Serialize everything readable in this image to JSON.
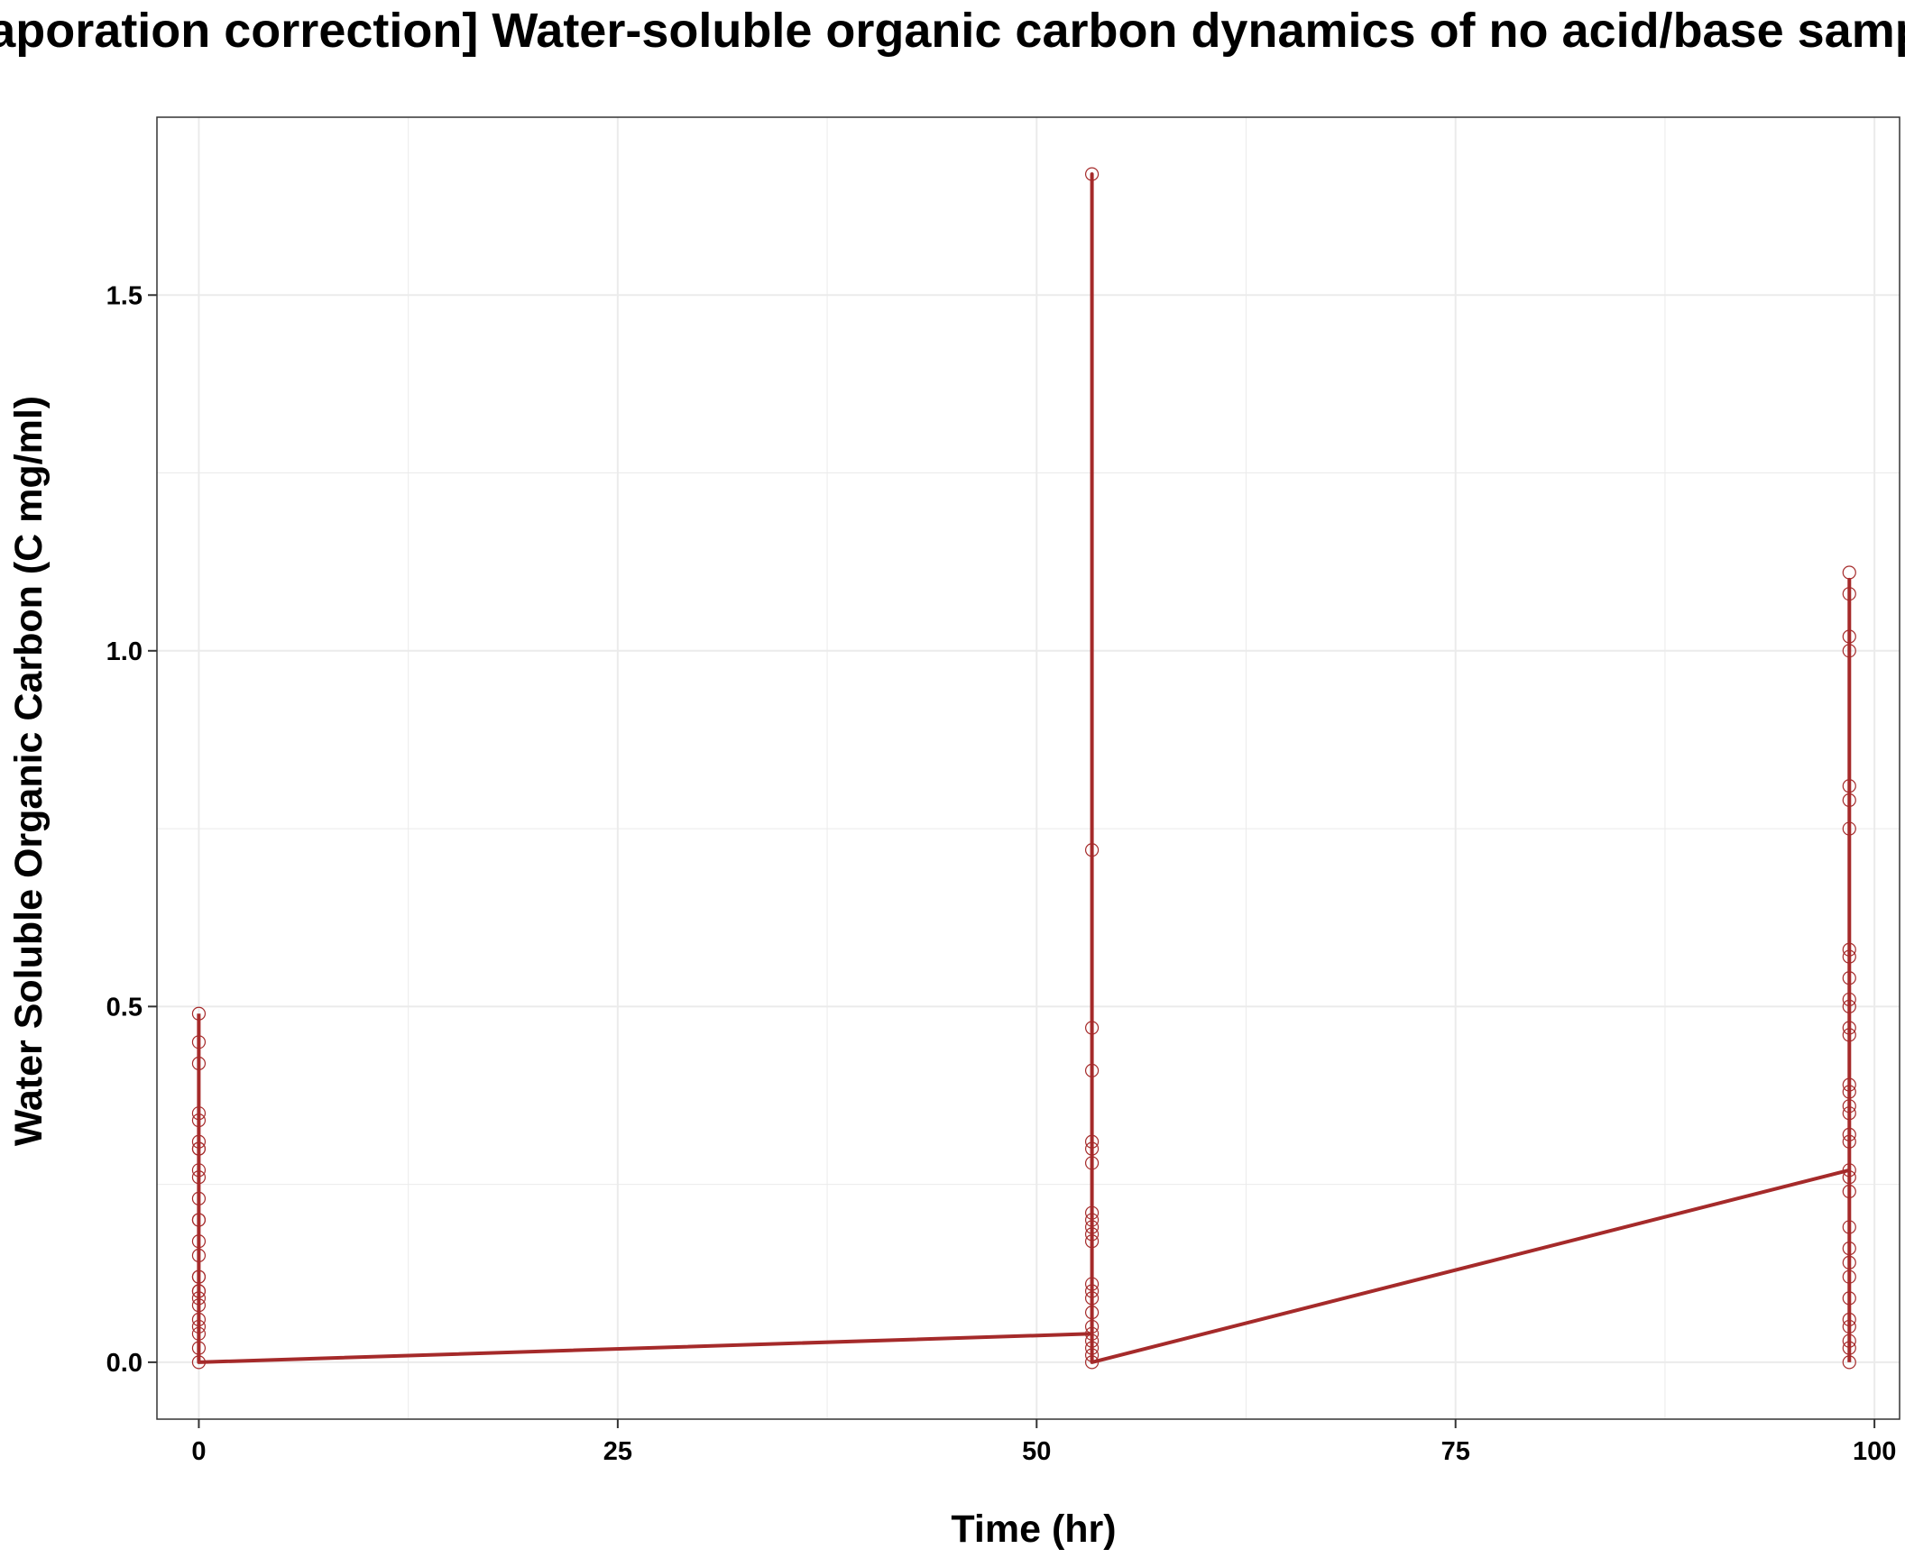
{
  "chart_data": {
    "type": "line",
    "title": "[Evaporation correction] Water-soluble organic carbon dynamics of no acid/base samples",
    "xlabel": "Time (hr)",
    "ylabel": "Water Soluble Organic Carbon (C mg/ml)",
    "xlim": [
      -2.5,
      101.5
    ],
    "ylim": [
      -0.08,
      1.75
    ],
    "x_ticks": [
      0,
      25,
      50,
      75,
      100
    ],
    "x_tick_labels": [
      "0",
      "25",
      "50",
      "75",
      "100"
    ],
    "y_ticks": [
      0,
      0.5,
      1,
      1.5
    ],
    "y_tick_labels": [
      "0.0",
      "0.5",
      "1.0",
      "1.5"
    ],
    "grid": true,
    "series_color": "#a52a2a",
    "grid_color": "#ebebeb",
    "series": [
      {
        "x": [
          0,
          0,
          0,
          53.3,
          53.3,
          53.3,
          53.3,
          98.5,
          98.5,
          98.5
        ],
        "y": [
          0.49,
          0,
          0,
          0.04,
          1.67,
          0,
          0,
          0.27,
          1.1,
          0
        ]
      }
    ],
    "points": [
      {
        "x": 0,
        "y": [
          0.49,
          0.45,
          0.42,
          0.35,
          0.34,
          0.31,
          0.3,
          0.3,
          0.27,
          0.26,
          0.23,
          0.2,
          0.2,
          0.17,
          0.15,
          0.12,
          0.12,
          0.1,
          0.1,
          0.09,
          0.08,
          0.06,
          0.05,
          0.04,
          0.02,
          0.0
        ]
      },
      {
        "x": 53.3,
        "y": [
          1.67,
          0.72,
          0.47,
          0.41,
          0.31,
          0.3,
          0.28,
          0.21,
          0.2,
          0.19,
          0.18,
          0.17,
          0.11,
          0.1,
          0.09,
          0.07,
          0.05,
          0.04,
          0.03,
          0.02,
          0.01,
          0.0
        ]
      },
      {
        "x": 98.5,
        "y": [
          1.11,
          1.08,
          1.02,
          1.0,
          0.81,
          0.79,
          0.75,
          0.58,
          0.57,
          0.54,
          0.51,
          0.5,
          0.47,
          0.46,
          0.39,
          0.38,
          0.36,
          0.35,
          0.32,
          0.31,
          0.27,
          0.26,
          0.24,
          0.19,
          0.16,
          0.14,
          0.12,
          0.09,
          0.06,
          0.05,
          0.03,
          0.02,
          0.0
        ]
      }
    ]
  }
}
